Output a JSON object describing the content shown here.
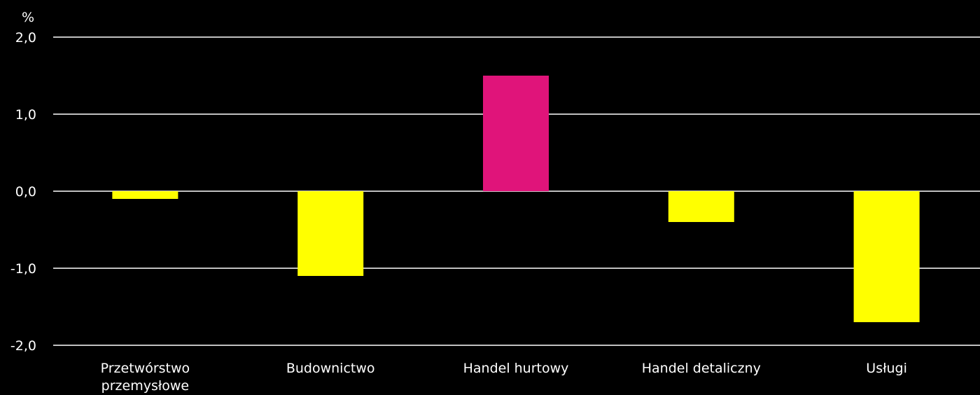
{
  "chart_data": {
    "type": "bar",
    "unit_label": "%",
    "categories": [
      "Przetwórstwo przemysłowe",
      "Budownictwo",
      "Handel hurtowy",
      "Handel detaliczny",
      "Usługi"
    ],
    "category_lines": [
      [
        "Przetwórstwo",
        "przemysłowe"
      ],
      [
        "Budownictwo"
      ],
      [
        "Handel hurtowy"
      ],
      [
        "Handel detaliczny"
      ],
      [
        "Usługi"
      ]
    ],
    "values": [
      -0.1,
      -1.1,
      1.5,
      -0.4,
      -1.7
    ],
    "colors": [
      "#ffff00",
      "#ffff00",
      "#e0147a",
      "#ffff00",
      "#ffff00"
    ],
    "ylim": [
      -2.0,
      2.0
    ],
    "yticks": [
      2.0,
      1.0,
      0.0,
      -1.0,
      -2.0
    ],
    "ytick_labels": [
      "2,0",
      "1,0",
      "0,0",
      "-1,0",
      "-2,0"
    ],
    "grid": true,
    "legend": "none"
  }
}
